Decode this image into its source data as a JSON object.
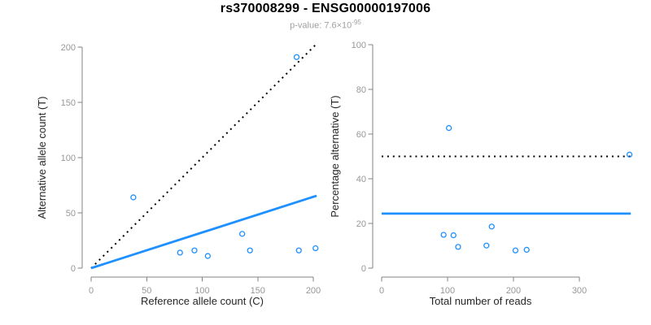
{
  "header": {
    "title": "rs370008299 - ENSG00000197006",
    "subtitle": {
      "text": "p-value: 7.6×10",
      "exponent": "-95"
    }
  },
  "colors": {
    "accent_blue": "#1E90FF",
    "dotted_black": "#000000",
    "axis_line": "#838383",
    "tick_label": "#979797",
    "axis_title": "#262626",
    "title_color": "#000000",
    "subtitle_gray": "#9f9f9f"
  },
  "chart_data": [
    {
      "name": "allele-counts-scatter",
      "type": "scatter",
      "title": "",
      "xlabel": "Reference allele count (C)",
      "ylabel": "Alternative allele count (T)",
      "xticks": [
        0,
        50,
        100,
        150,
        200
      ],
      "yticks": [
        0,
        50,
        100,
        150,
        200
      ],
      "xlim": [
        0,
        205
      ],
      "ylim": [
        0,
        205
      ],
      "grid": false,
      "points": [
        [
          38,
          64
        ],
        [
          80,
          14
        ],
        [
          93,
          16
        ],
        [
          105,
          11
        ],
        [
          136,
          31
        ],
        [
          143,
          16
        ],
        [
          185,
          191
        ],
        [
          187,
          16
        ],
        [
          202,
          18
        ]
      ],
      "lines": [
        {
          "name": "identity-line",
          "style": "dotted",
          "color": "#000000",
          "x1": 0,
          "y1": 0,
          "x2": 202,
          "y2": 202
        },
        {
          "name": "overall-ratio-line",
          "style": "solid",
          "color": "#1E90FF",
          "x1": 0,
          "y1": 0,
          "x2": 203,
          "y2": 65.5
        }
      ],
      "marker": {
        "shape": "open-circle",
        "color": "#1E90FF",
        "radius": 3
      }
    },
    {
      "name": "percentage-vs-reads-scatter",
      "type": "scatter",
      "title": "",
      "xlabel": "Total number of reads",
      "ylabel": "Percentage alternative (T)",
      "xticks": [
        0,
        100,
        200,
        300
      ],
      "yticks": [
        0,
        20,
        40,
        60,
        80,
        100
      ],
      "xlim": [
        0,
        380
      ],
      "ylim": [
        0,
        100
      ],
      "grid": false,
      "points": [
        [
          94,
          14.9
        ],
        [
          102,
          62.7
        ],
        [
          109,
          14.7
        ],
        [
          116,
          9.5
        ],
        [
          159,
          10.1
        ],
        [
          167,
          18.6
        ],
        [
          203,
          7.9
        ],
        [
          220,
          8.2
        ],
        [
          376,
          50.8
        ]
      ],
      "lines": [
        {
          "name": "fifty-percent-line",
          "style": "dotted",
          "color": "#000000",
          "x1": 0,
          "y1": 50,
          "x2": 378,
          "y2": 50
        },
        {
          "name": "overall-percentage-line",
          "style": "solid",
          "color": "#1E90FF",
          "x1": 0,
          "y1": 24.4,
          "x2": 378,
          "y2": 24.4
        }
      ],
      "marker": {
        "shape": "open-circle",
        "color": "#1E90FF",
        "radius": 3
      }
    }
  ]
}
